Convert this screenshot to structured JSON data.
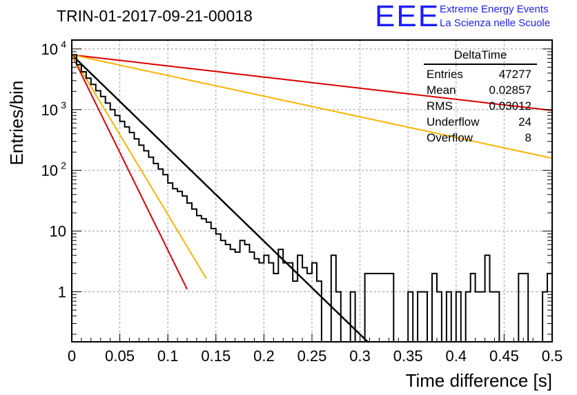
{
  "header": {
    "title": "TRIN-01-2017-09-21-00018",
    "logo_mark": "EEE",
    "logo_line1": "Extreme Energy Events",
    "logo_line2": "La Scienza nelle Scuole"
  },
  "stats": {
    "title": "DeltaTime",
    "rows": [
      {
        "label": "Entries",
        "value": "47277"
      },
      {
        "label": "Mean",
        "value": "0.02857"
      },
      {
        "label": "RMS",
        "value": "0.03012"
      },
      {
        "label": "Underflow",
        "value": "24"
      },
      {
        "label": "Overflow",
        "value": "8"
      }
    ]
  },
  "chart_data": {
    "type": "line",
    "xlabel": "Time difference [s]",
    "ylabel": "Entries/bin",
    "xlim": [
      0,
      0.5
    ],
    "ylim": [
      0.15,
      14000
    ],
    "log_y": true,
    "grid": true,
    "x_ticks": [
      {
        "v": 0,
        "label": "0"
      },
      {
        "v": 0.05,
        "label": "0.05"
      },
      {
        "v": 0.1,
        "label": "0.1"
      },
      {
        "v": 0.15,
        "label": "0.15"
      },
      {
        "v": 0.2,
        "label": "0.2"
      },
      {
        "v": 0.25,
        "label": "0.25"
      },
      {
        "v": 0.3,
        "label": "0.3"
      },
      {
        "v": 0.35,
        "label": "0.35"
      },
      {
        "v": 0.4,
        "label": "0.4"
      },
      {
        "v": 0.45,
        "label": "0.45"
      },
      {
        "v": 0.5,
        "label": "0.5"
      }
    ],
    "y_ticks": [
      {
        "v": 1,
        "label": "1"
      },
      {
        "v": 10,
        "label": "10"
      },
      {
        "v": 100,
        "label": "10",
        "exp": "2"
      },
      {
        "v": 1000,
        "label": "10",
        "exp": "3"
      },
      {
        "v": 10000,
        "label": "10",
        "exp": "4"
      }
    ],
    "histogram": {
      "bin_width": 0.005,
      "start": 0,
      "values": [
        8000,
        5500,
        4200,
        3300,
        2600,
        2050,
        1650,
        1280,
        1000,
        800,
        640,
        520,
        420,
        330,
        260,
        210,
        165,
        130,
        105,
        85,
        62,
        50,
        45,
        38,
        29,
        23,
        18,
        16,
        14,
        11,
        9,
        7,
        6,
        5,
        4.5,
        7,
        6,
        4.5,
        3.5,
        3,
        4,
        3,
        2,
        5,
        3,
        3,
        1.5,
        4,
        2.5,
        2,
        3,
        1.5,
        0,
        0,
        4,
        1,
        0,
        0,
        1,
        0,
        0,
        2,
        2,
        2,
        2,
        2,
        2,
        0,
        0,
        0,
        1,
        0,
        1,
        1,
        0,
        2,
        1,
        0,
        1,
        0,
        1,
        0,
        1,
        2,
        1,
        1,
        4,
        1,
        1,
        0,
        0,
        0,
        0,
        2,
        2,
        0,
        0,
        0,
        1,
        2
      ],
      "color": "#000000"
    },
    "series": [
      {
        "type": "exponential",
        "amplitude": 8000,
        "tau": 0.0283,
        "x_end": 0.31,
        "color": "#000000",
        "width": 2.5
      },
      {
        "type": "exponential",
        "amplitude": 8000,
        "tau": 0.0135,
        "x_end": 0.12,
        "color": "#dd0000",
        "width": 2
      },
      {
        "type": "exponential",
        "amplitude": 8000,
        "tau": 0.0165,
        "x_end": 0.14,
        "color": "#ffb300",
        "width": 2
      },
      {
        "type": "exponential",
        "amplitude": 8000,
        "tau": 0.237,
        "x_end": 0.5,
        "color": "#dd0000",
        "width": 2
      },
      {
        "type": "exponential",
        "amplitude": 8000,
        "tau": 0.1275,
        "x_end": 0.5,
        "color": "#ffb300",
        "width": 2
      }
    ]
  }
}
